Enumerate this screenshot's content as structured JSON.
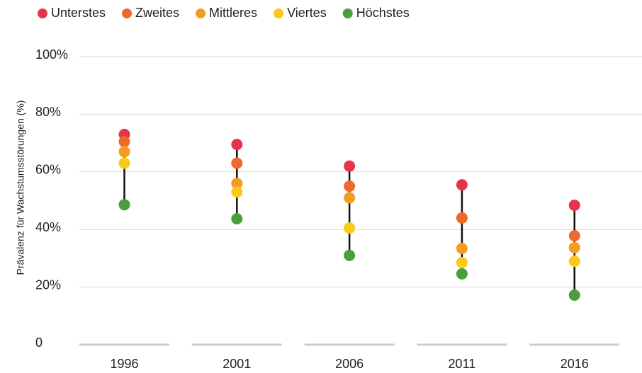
{
  "chart_data": {
    "type": "dot_range",
    "y_label": "Prävalenz für Wachstumsstörungen (%)",
    "categories": [
      "1996",
      "2001",
      "2006",
      "2011",
      "2016"
    ],
    "series": [
      {
        "name": "Unterstes",
        "color": "#e8344a",
        "values": [
          73,
          69.5,
          62,
          55.5,
          48.4
        ]
      },
      {
        "name": "Zweites",
        "color": "#ec6a2c",
        "values": [
          70.5,
          63,
          55,
          44,
          37.8
        ]
      },
      {
        "name": "Mittleres",
        "color": "#f39c1f",
        "values": [
          67,
          56,
          51,
          33.4,
          33.7
        ]
      },
      {
        "name": "Viertes",
        "color": "#fbc918",
        "values": [
          63,
          53,
          40.5,
          28.5,
          29
        ]
      },
      {
        "name": "Höchstes",
        "color": "#4a9e3c",
        "values": [
          48.6,
          43.7,
          31,
          24.6,
          17.2
        ]
      }
    ],
    "ylim": [
      0,
      100
    ],
    "yticks": [
      0,
      {
        "value": 20,
        "label": "20%"
      },
      {
        "value": 40,
        "label": "40%"
      },
      {
        "value": 60,
        "label": "60%"
      },
      {
        "value": 80,
        "label": "80%"
      },
      {
        "value": 100,
        "label": "100%"
      }
    ],
    "grid": true,
    "legend": "top"
  }
}
